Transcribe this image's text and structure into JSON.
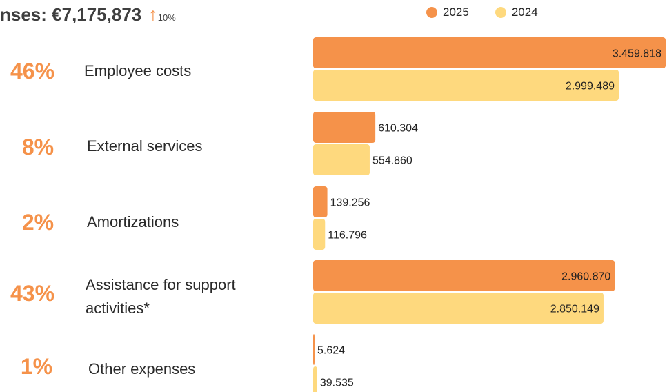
{
  "header": {
    "title": "nses: €7,175,873",
    "trend_icon": "arrow-up-icon",
    "trend_arrow": "↑",
    "trend_percent": "10%"
  },
  "colors": {
    "series_2025": "#f5924a",
    "series_2024": "#fed97e",
    "accent": "#f5924a"
  },
  "chart_data": {
    "type": "bar",
    "orientation": "horizontal",
    "categories": [
      "Employee costs",
      "External services",
      "Amortizations",
      "Assistance for support activities*",
      "Other expenses"
    ],
    "shares": [
      "46%",
      "8%",
      "2%",
      "43%",
      "1%"
    ],
    "series": [
      {
        "name": "2025",
        "values": [
          3459818,
          610304,
          139256,
          2960870,
          5624
        ],
        "labels": [
          "3.459.818",
          "610.304",
          "139.256",
          "2.960.870",
          "5.624"
        ]
      },
      {
        "name": "2024",
        "values": [
          2999489,
          554860,
          116796,
          2850149,
          39535
        ],
        "labels": [
          "2.999.489",
          "554.860",
          "116.796",
          "2.850.149",
          "39.535"
        ]
      }
    ],
    "legend": {
      "position": "top-right"
    },
    "grid": false
  }
}
